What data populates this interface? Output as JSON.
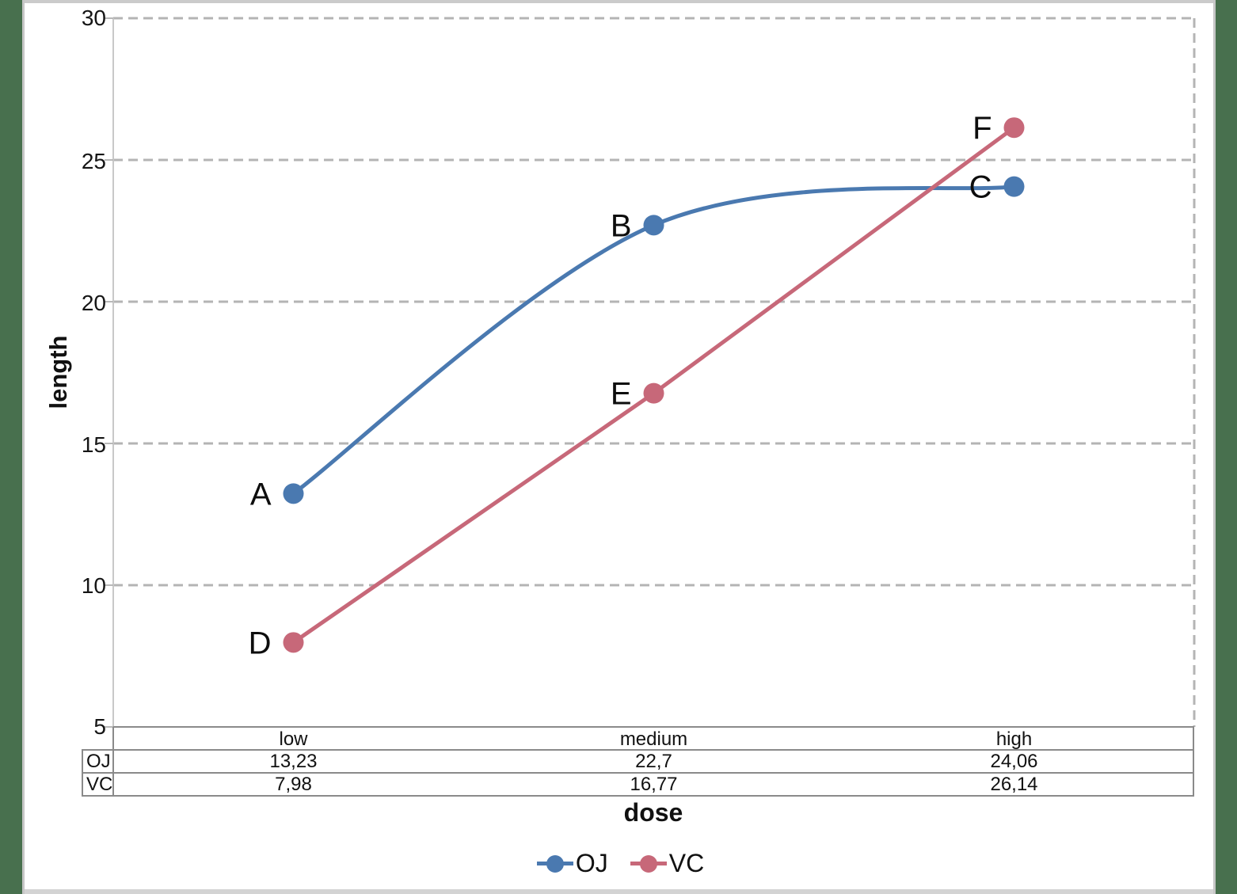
{
  "frame": {
    "side_border_color": "#48704e",
    "top_strip_color": "#cbcbcb",
    "bottom_strip_color": "#d3d3d3"
  },
  "chart_data": {
    "type": "line",
    "title": "",
    "xlabel": "dose",
    "ylabel": "length",
    "categories": [
      "low",
      "medium",
      "high"
    ],
    "series": [
      {
        "name": "OJ",
        "color": "#4a79b0",
        "values": [
          13.23,
          22.7,
          24.06
        ],
        "point_labels": [
          "A",
          "B",
          "C"
        ],
        "smooth": true
      },
      {
        "name": "VC",
        "color": "#c76879",
        "values": [
          7.98,
          16.77,
          26.14
        ],
        "point_labels": [
          "D",
          "E",
          "F"
        ],
        "smooth": false
      }
    ],
    "ylim": [
      5,
      30
    ],
    "yticks": [
      30,
      25,
      20,
      15,
      10,
      5
    ],
    "grid": "horizontal dashed gridlines, dashed right border",
    "grid_color": "#b4b4b4",
    "axis_color": "#8a8a8a",
    "legend_position": "bottom"
  },
  "table": {
    "headers": [
      "low",
      "medium",
      "high"
    ],
    "rows": [
      {
        "label": "OJ",
        "values": [
          "13,23",
          "22,7",
          "24,06"
        ]
      },
      {
        "label": "VC",
        "values": [
          "7,98",
          "16,77",
          "26,14"
        ]
      }
    ]
  },
  "legend": {
    "items": [
      {
        "label": "OJ",
        "color": "#4a79b0"
      },
      {
        "label": "VC",
        "color": "#c76879"
      }
    ]
  }
}
